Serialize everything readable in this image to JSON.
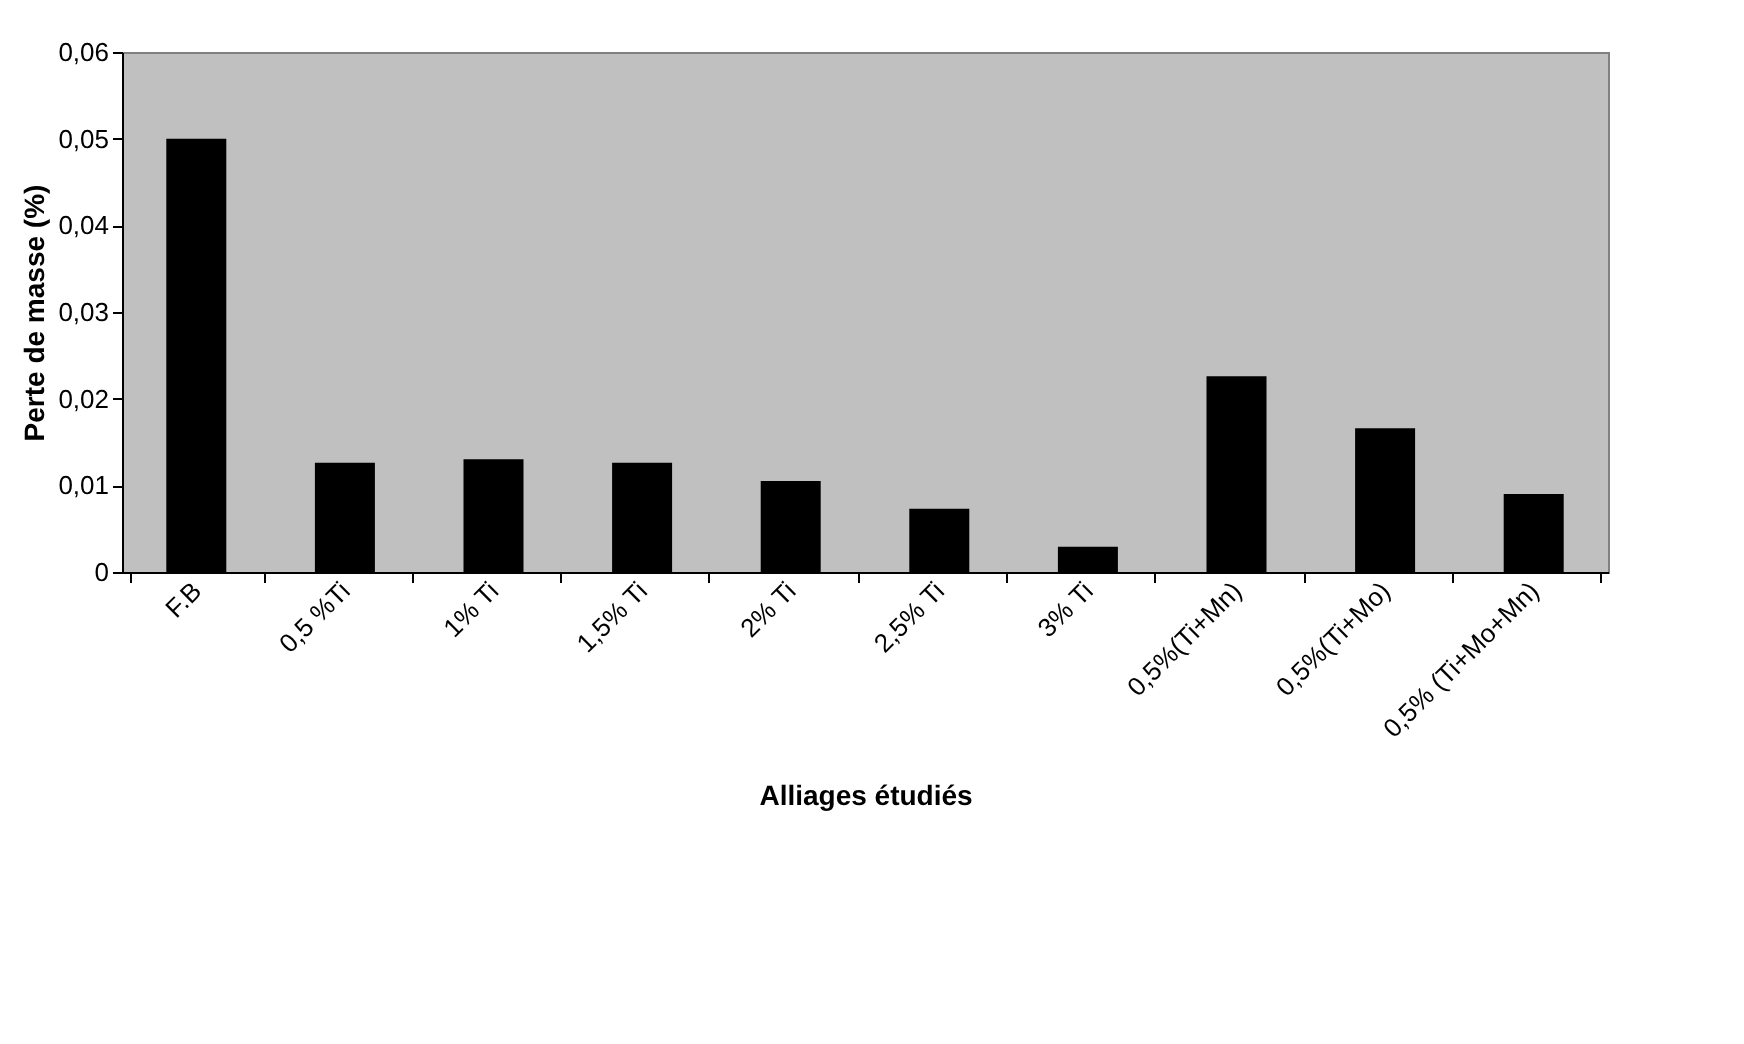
{
  "chart_data": {
    "type": "bar",
    "xlabel": "Alliages étudiés",
    "ylabel": "Perte de masse (%)",
    "categories": [
      "F.B",
      "0,5 %Ti",
      "1% Ti",
      "1,5% Ti",
      "2% Ti",
      "2,5% Ti",
      "3% Ti",
      "0,5%(Ti+Mn)",
      "0,5%(Ti+Mo)",
      "0,5% (Ti+Mo+Mn)"
    ],
    "values": [
      0.05,
      0.0126,
      0.013,
      0.0126,
      0.0105,
      0.0073,
      0.0029,
      0.0226,
      0.0166,
      0.009
    ],
    "color": "#000000",
    "ylim": [
      0,
      0.06
    ],
    "yticks": [
      0,
      {
        "value": 0.01,
        "label": "0,01"
      },
      {
        "value": 0.02,
        "label": "0,02"
      },
      {
        "value": 0.03,
        "label": "0,03"
      },
      {
        "value": 0.04,
        "label": "0,04"
      },
      {
        "value": 0.05,
        "label": "0,05"
      },
      {
        "value": 0.06,
        "label": "0,06"
      }
    ],
    "grid": false
  }
}
